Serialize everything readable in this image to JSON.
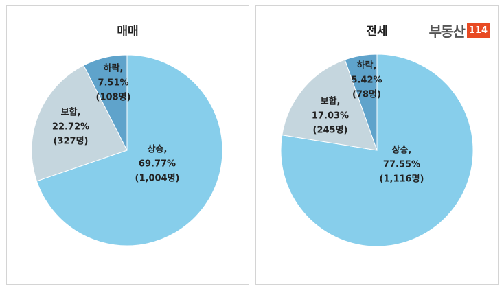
{
  "brand": {
    "logo_text": "부동산",
    "logo_number": "114",
    "accent": "#e84a23"
  },
  "colors": {
    "up": "#87ceeb",
    "hold": "#c5d6de",
    "down": "#5fa3cb"
  },
  "chart_data": [
    {
      "type": "pie",
      "title": "매매",
      "slices": [
        {
          "key": "up",
          "name": "상승,",
          "value": 69.77,
          "value_text": "69.77%",
          "count_text": "(1,004명)"
        },
        {
          "key": "hold",
          "name": "보합,",
          "value": 22.72,
          "value_text": "22.72%",
          "count_text": "(327명)"
        },
        {
          "key": "down",
          "name": "하락,",
          "value": 7.51,
          "value_text": "7.51%",
          "count_text": "(108명)"
        }
      ]
    },
    {
      "type": "pie",
      "title": "전세",
      "slices": [
        {
          "key": "up",
          "name": "상승,",
          "value": 77.55,
          "value_text": "77.55%",
          "count_text": "(1,116명)"
        },
        {
          "key": "hold",
          "name": "보합,",
          "value": 17.03,
          "value_text": "17.03%",
          "count_text": "(245명)"
        },
        {
          "key": "down",
          "name": "하락,",
          "value": 5.42,
          "value_text": "5.42%",
          "count_text": "(78명)"
        }
      ]
    }
  ]
}
